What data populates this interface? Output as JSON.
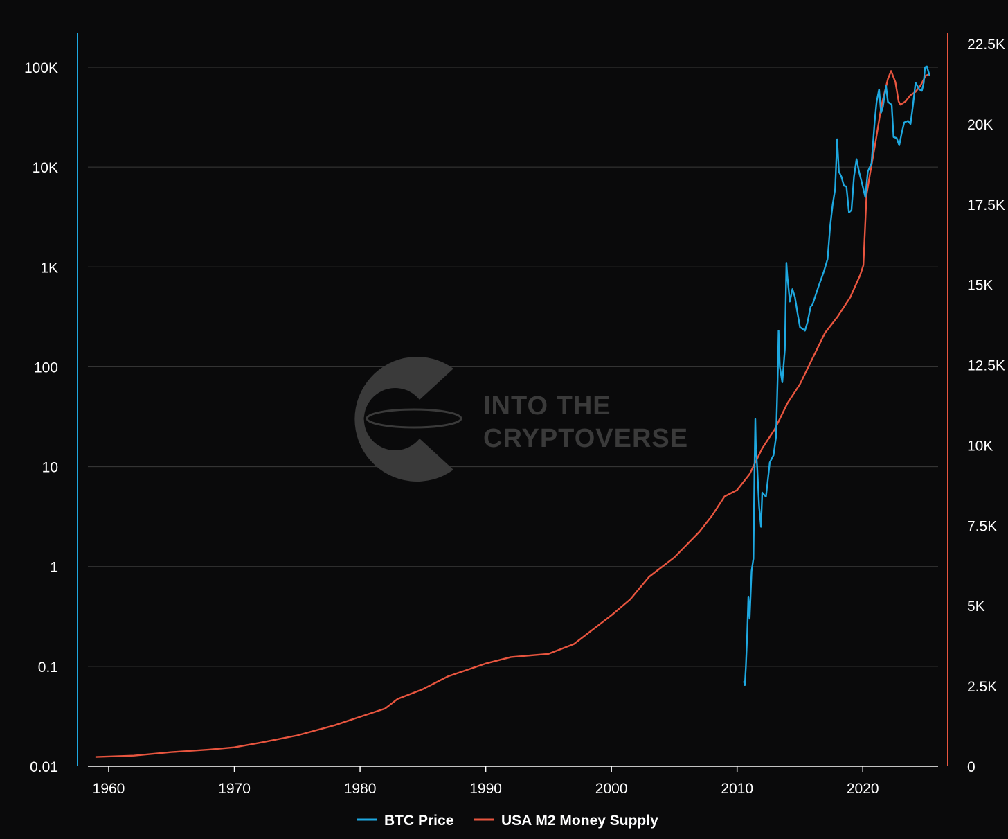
{
  "watermark": {
    "line1": "INTO THE",
    "line2": "CRYPTOVERSE"
  },
  "colors": {
    "background": "#0a0a0b",
    "btc": "#1ea8e0",
    "m2": "#e8553f",
    "grid": "#3a3a3a",
    "watermark": "#3a3a3a"
  },
  "chart_data": {
    "type": "line",
    "title": "",
    "xlabel": "",
    "x_ticks": [
      "1960",
      "1970",
      "1980",
      "1990",
      "2000",
      "2010",
      "2020"
    ],
    "xlim": [
      1958.0,
      2025.5
    ],
    "grid": true,
    "legend": "bottom-center",
    "y_left": {
      "scale": "log",
      "ylim": [
        0.01,
        100000
      ],
      "ticks": [
        0.01,
        0.1,
        1,
        10,
        100,
        1000,
        10000,
        100000
      ],
      "tick_labels": [
        "0.01",
        "0.1",
        "1",
        "10",
        "100",
        "1K",
        "10K",
        "100K"
      ]
    },
    "y_right": {
      "scale": "linear",
      "ylim": [
        0,
        22500
      ],
      "ticks": [
        0,
        2500,
        5000,
        7500,
        10000,
        12500,
        15000,
        17500,
        20000,
        22500
      ],
      "tick_labels": [
        "0",
        "2.5K",
        "5K",
        "7.5K",
        "10K",
        "12.5K",
        "15K",
        "17.5K",
        "20K",
        "22.5K"
      ]
    },
    "series": [
      {
        "name": "BTC Price",
        "axis": "left",
        "points": [
          [
            2010.55,
            0.07
          ],
          [
            2010.62,
            0.065
          ],
          [
            2010.7,
            0.1
          ],
          [
            2010.8,
            0.2
          ],
          [
            2010.9,
            0.5
          ],
          [
            2011.0,
            0.3
          ],
          [
            2011.15,
            0.9
          ],
          [
            2011.3,
            1.2
          ],
          [
            2011.38,
            8
          ],
          [
            2011.45,
            30
          ],
          [
            2011.5,
            15
          ],
          [
            2011.6,
            10
          ],
          [
            2011.75,
            4
          ],
          [
            2011.9,
            2.5
          ],
          [
            2012.0,
            5.5
          ],
          [
            2012.3,
            5
          ],
          [
            2012.6,
            11
          ],
          [
            2012.9,
            13
          ],
          [
            2013.1,
            20
          ],
          [
            2013.25,
            100
          ],
          [
            2013.3,
            230
          ],
          [
            2013.4,
            100
          ],
          [
            2013.6,
            70
          ],
          [
            2013.8,
            150
          ],
          [
            2013.92,
            1100
          ],
          [
            2014.0,
            800
          ],
          [
            2014.2,
            450
          ],
          [
            2014.4,
            600
          ],
          [
            2014.6,
            500
          ],
          [
            2014.8,
            350
          ],
          [
            2015.0,
            250
          ],
          [
            2015.2,
            240
          ],
          [
            2015.4,
            230
          ],
          [
            2015.6,
            280
          ],
          [
            2015.85,
            400
          ],
          [
            2016.0,
            420
          ],
          [
            2016.5,
            650
          ],
          [
            2016.9,
            900
          ],
          [
            2017.2,
            1200
          ],
          [
            2017.4,
            2500
          ],
          [
            2017.6,
            4200
          ],
          [
            2017.8,
            6000
          ],
          [
            2017.96,
            19000
          ],
          [
            2018.1,
            9000
          ],
          [
            2018.3,
            8000
          ],
          [
            2018.5,
            6500
          ],
          [
            2018.7,
            6400
          ],
          [
            2018.9,
            3500
          ],
          [
            2019.1,
            3700
          ],
          [
            2019.3,
            8000
          ],
          [
            2019.5,
            12000
          ],
          [
            2019.7,
            9000
          ],
          [
            2019.9,
            7200
          ],
          [
            2020.2,
            5000
          ],
          [
            2020.4,
            9000
          ],
          [
            2020.7,
            11000
          ],
          [
            2020.95,
            29000
          ],
          [
            2021.1,
            45000
          ],
          [
            2021.3,
            60000
          ],
          [
            2021.45,
            35000
          ],
          [
            2021.6,
            40000
          ],
          [
            2021.85,
            65000
          ],
          [
            2022.0,
            45000
          ],
          [
            2022.3,
            42000
          ],
          [
            2022.45,
            20000
          ],
          [
            2022.7,
            19500
          ],
          [
            2022.9,
            16500
          ],
          [
            2023.1,
            22000
          ],
          [
            2023.3,
            28000
          ],
          [
            2023.6,
            29000
          ],
          [
            2023.8,
            27000
          ],
          [
            2024.0,
            42000
          ],
          [
            2024.2,
            70000
          ],
          [
            2024.5,
            60000
          ],
          [
            2024.7,
            58000
          ],
          [
            2024.85,
            70000
          ],
          [
            2024.95,
            100000
          ],
          [
            2025.1,
            102000
          ],
          [
            2025.3,
            84000
          ]
        ]
      },
      {
        "name": "USA M2 Money Supply",
        "axis": "right",
        "points": [
          [
            1959.0,
            290
          ],
          [
            1962.0,
            330
          ],
          [
            1965.0,
            440
          ],
          [
            1968.0,
            520
          ],
          [
            1970.0,
            590
          ],
          [
            1972.0,
            730
          ],
          [
            1975.0,
            960
          ],
          [
            1978.0,
            1280
          ],
          [
            1980.0,
            1540
          ],
          [
            1982.0,
            1800
          ],
          [
            1983.0,
            2100
          ],
          [
            1985.0,
            2400
          ],
          [
            1987.0,
            2800
          ],
          [
            1990.0,
            3200
          ],
          [
            1992.0,
            3400
          ],
          [
            1995.0,
            3500
          ],
          [
            1997.0,
            3800
          ],
          [
            1998.0,
            4100
          ],
          [
            2000.0,
            4700
          ],
          [
            2001.5,
            5200
          ],
          [
            2003.0,
            5900
          ],
          [
            2005.0,
            6500
          ],
          [
            2007.0,
            7300
          ],
          [
            2008.0,
            7800
          ],
          [
            2009.0,
            8400
          ],
          [
            2010.0,
            8600
          ],
          [
            2011.0,
            9100
          ],
          [
            2012.0,
            9900
          ],
          [
            2013.0,
            10500
          ],
          [
            2014.0,
            11300
          ],
          [
            2015.0,
            11900
          ],
          [
            2016.0,
            12700
          ],
          [
            2017.0,
            13500
          ],
          [
            2018.0,
            14000
          ],
          [
            2019.0,
            14600
          ],
          [
            2019.8,
            15300
          ],
          [
            2020.05,
            15600
          ],
          [
            2020.3,
            17800
          ],
          [
            2020.6,
            18500
          ],
          [
            2021.0,
            19400
          ],
          [
            2021.5,
            20600
          ],
          [
            2022.0,
            21400
          ],
          [
            2022.25,
            21650
          ],
          [
            2022.6,
            21300
          ],
          [
            2022.85,
            20700
          ],
          [
            2023.0,
            20600
          ],
          [
            2023.4,
            20700
          ],
          [
            2023.8,
            20900
          ],
          [
            2024.2,
            21000
          ],
          [
            2024.6,
            21200
          ],
          [
            2025.0,
            21500
          ],
          [
            2025.3,
            21550
          ]
        ]
      }
    ]
  }
}
